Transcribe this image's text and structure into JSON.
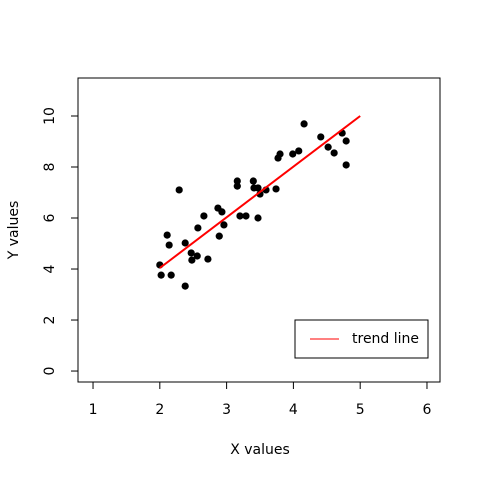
{
  "chart_data": {
    "type": "scatter",
    "xlabel": "X values",
    "ylabel": "Y values",
    "x": [
      2.0,
      2.02,
      2.11,
      2.14,
      2.17,
      2.29,
      2.38,
      2.38,
      2.47,
      2.48,
      2.57,
      2.56,
      2.66,
      2.72,
      2.87,
      2.89,
      2.93,
      2.96,
      3.16,
      3.16,
      3.2,
      3.29,
      3.4,
      3.41,
      3.47,
      3.5,
      3.47,
      3.59,
      3.74,
      3.77,
      3.8,
      3.99,
      4.08,
      4.16,
      4.41,
      4.52,
      4.61,
      4.73,
      4.79,
      4.79
    ],
    "y": [
      4.16,
      3.76,
      5.33,
      4.94,
      3.76,
      7.1,
      5.02,
      3.33,
      4.63,
      4.35,
      5.61,
      4.51,
      6.08,
      4.39,
      6.39,
      5.29,
      6.24,
      5.73,
      7.45,
      7.25,
      6.08,
      6.08,
      7.45,
      7.18,
      7.18,
      6.94,
      6.0,
      7.1,
      7.14,
      8.35,
      8.51,
      8.51,
      8.63,
      9.69,
      9.18,
      8.78,
      8.55,
      9.33,
      9.02,
      8.08
    ],
    "color": "#000000",
    "trend": {
      "name": "trend line",
      "color": "#ff0000",
      "x": [
        2.0,
        5.0
      ],
      "y": [
        4.04,
        10
      ]
    },
    "legend": "bottomright",
    "xlim": [
      0.775,
      6.195
    ],
    "ylim": [
      -0.43,
      11.49
    ],
    "xticks": [
      1,
      2,
      3,
      4,
      5,
      6
    ],
    "yticks": [
      0,
      2,
      4,
      6,
      8,
      10
    ]
  }
}
